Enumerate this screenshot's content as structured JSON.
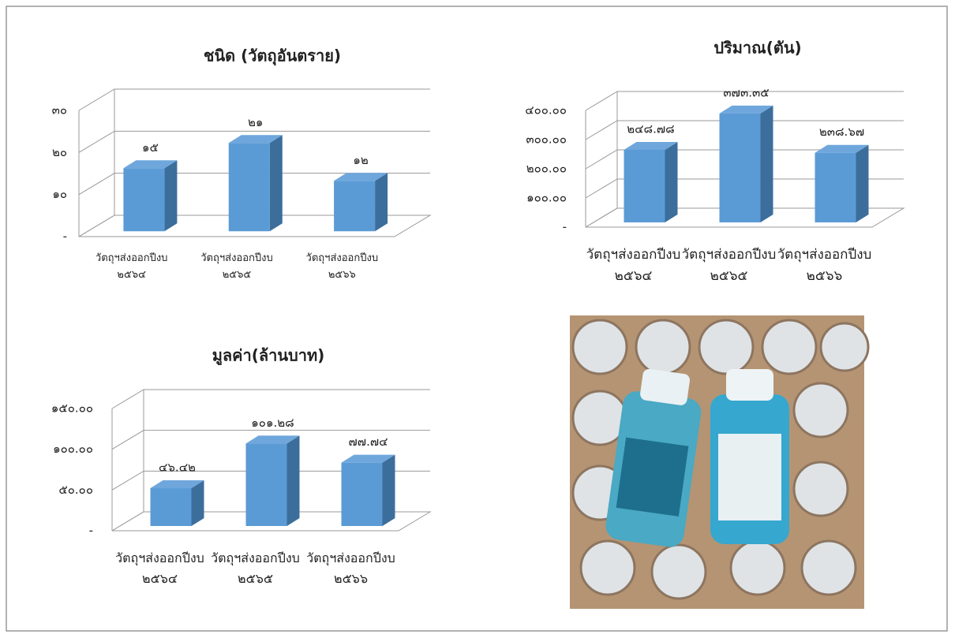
{
  "chart_data": [
    {
      "type": "bar3d",
      "title": "ชนิด (วัตถุอันตราย)",
      "categories": [
        "วัตถุฯส่งออกปีงบ\n๒๕๖๔",
        "วัตถุฯส่งออกปีงบ\n๒๕๖๕",
        "วัตถุฯส่งออกปีงบ\n๒๕๖๖"
      ],
      "values": [
        15,
        21,
        12
      ],
      "value_labels": [
        "๑๕",
        "๒๑",
        "๑๒"
      ],
      "color": "#5b9bd5",
      "ylim": [
        0,
        30
      ],
      "yticks": [
        {
          "value": 0,
          "label": "-"
        },
        {
          "value": 10,
          "label": "๑๐"
        },
        {
          "value": 20,
          "label": "๒๐"
        },
        {
          "value": 30,
          "label": "๓๐"
        }
      ],
      "grid": true
    },
    {
      "type": "bar3d",
      "title": "ปริมาณ(ตัน)",
      "categories": [
        "วัตถุฯส่งออกปีงบ\n๒๕๖๔",
        "วัตถุฯส่งออกปีงบ\n๒๕๖๕",
        "วัตถุฯส่งออกปีงบ\n๒๕๖๖"
      ],
      "values": [
        248.78,
        373.35,
        238.67
      ],
      "value_labels": [
        "๒๔๘.๗๘",
        "๓๗๓.๓๕",
        "๒๓๘.๖๗"
      ],
      "color": "#5b9bd5",
      "ylim": [
        0,
        400
      ],
      "yticks": [
        {
          "value": 0,
          "label": "-"
        },
        {
          "value": 100,
          "label": "๑๐๐.๐๐"
        },
        {
          "value": 200,
          "label": "๒๐๐.๐๐"
        },
        {
          "value": 300,
          "label": "๓๐๐.๐๐"
        },
        {
          "value": 400,
          "label": "๔๐๐.๐๐"
        }
      ],
      "grid": true
    },
    {
      "type": "bar3d",
      "title": "มูลค่า(ล้านบาท)",
      "categories": [
        "วัตถุฯส่งออกปีงบ\n๒๕๖๔",
        "วัตถุฯส่งออกปีงบ\n๒๕๖๕",
        "วัตถุฯส่งออกปีงบ\n๒๕๖๖"
      ],
      "values": [
        46.42,
        101.28,
        77.74
      ],
      "value_labels": [
        "๔๖.๔๒",
        "๑๐๑.๒๘",
        "๗๗.๗๔"
      ],
      "color": "#5b9bd5",
      "ylim": [
        0,
        150
      ],
      "yticks": [
        {
          "value": 0,
          "label": "-"
        },
        {
          "value": 50,
          "label": "๕๐.๐๐"
        },
        {
          "value": 100,
          "label": "๑๐๐.๐๐"
        },
        {
          "value": 150,
          "label": "๑๕๐.๐๐"
        }
      ],
      "grid": true
    }
  ]
}
